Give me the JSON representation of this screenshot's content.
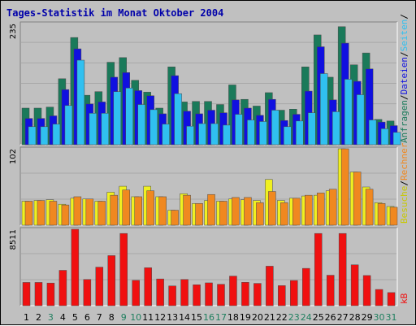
{
  "chart_data": {
    "type": "bar",
    "title": "Tages-Statistik im Monat Oktober 2004",
    "categories": [
      "1",
      "2",
      "3",
      "4",
      "5",
      "6",
      "7",
      "8",
      "9",
      "10",
      "11",
      "12",
      "13",
      "14",
      "15",
      "16",
      "17",
      "18",
      "19",
      "20",
      "21",
      "22",
      "23",
      "24",
      "25",
      "26",
      "27",
      "28",
      "29",
      "30",
      "31"
    ],
    "category_colors": [
      "#000000",
      "#000000",
      "#1f7f5f",
      "#000000",
      "#000000",
      "#000000",
      "#000000",
      "#000000",
      "#1f7f5f",
      "#1f7f5f",
      "#000000",
      "#000000",
      "#000000",
      "#000000",
      "#000000",
      "#1f7f5f",
      "#1f7f5f",
      "#000000",
      "#000000",
      "#000000",
      "#000000",
      "#000000",
      "#1f7f5f",
      "#1f7f5f",
      "#000000",
      "#000000",
      "#000000",
      "#000000",
      "#000000",
      "#1f7f5f",
      "#1f7f5f"
    ],
    "panels": [
      {
        "id": "top",
        "ymax_label": "235",
        "ymax": 235,
        "series": [
          {
            "name": "Anfragen",
            "color": "#1a7a5a",
            "values": [
              71,
              71,
              73,
              128,
              208,
              96,
              103,
              160,
              169,
              125,
              102,
              71,
              151,
              83,
              84,
              84,
              78,
              116,
              88,
              75,
              101,
              67,
              69,
              151,
              213,
              131,
              229,
              155,
              178,
              49,
              46
            ]
          },
          {
            "name": "Dateien",
            "color": "#1010e0",
            "values": [
              51,
              51,
              56,
              107,
              186,
              79,
              83,
              131,
              140,
              105,
              95,
              60,
              134,
              65,
              60,
              67,
              62,
              87,
              71,
              57,
              88,
              47,
              59,
              104,
              190,
              87,
              197,
              123,
              147,
              44,
              37
            ]
          },
          {
            "name": "Seiten",
            "color": "#30c0f0",
            "values": [
              35,
              35,
              40,
              76,
              164,
              61,
              61,
              103,
              110,
              78,
              68,
              40,
              99,
              36,
              41,
              41,
              38,
              59,
              48,
              45,
              67,
              35,
              46,
              62,
              138,
              64,
              127,
              97,
              48,
              31,
              24
            ]
          }
        ],
        "legend": [
          "Anfragen",
          "/",
          "Dateien",
          "/",
          "Seiten",
          "/"
        ]
      },
      {
        "id": "middle",
        "ymax_label": "102",
        "ymax": 102,
        "series": [
          {
            "name": "Besuche",
            "color": "#f0f020",
            "values": [
              32,
              33,
              34,
              28,
              36,
              35,
              32,
              44,
              52,
              38,
              52,
              38,
              20,
              42,
              29,
              33,
              32,
              35,
              34,
              33,
              61,
              33,
              36,
              39,
              40,
              46,
              102,
              71,
              51,
              30,
              25
            ]
          },
          {
            "name": "Rechner",
            "color": "#f08820",
            "values": [
              32,
              33,
              32,
              27,
              38,
              35,
              32,
              40,
              47,
              38,
              46,
              38,
              20,
              40,
              29,
              41,
              32,
              37,
              37,
              30,
              45,
              30,
              36,
              40,
              43,
              48,
              102,
              71,
              48,
              29,
              24
            ]
          }
        ],
        "legend": [
          "Besuche",
          "/",
          "Rechner"
        ]
      },
      {
        "id": "bottom",
        "ymax_label": "8511",
        "ymax": 8511,
        "series": [
          {
            "name": "kB",
            "color": "#f01010",
            "values": [
              2587,
              2587,
              2521,
              3938,
              8511,
              2922,
              4293,
              5577,
              8044,
              2819,
              4226,
              2978,
              2197,
              2919,
              2331,
              2540,
              2383,
              3296,
              2600,
              2482,
              4399,
              2234,
              2805,
              4155,
              8044,
              3392,
              8044,
              4551,
              3360,
              1807,
              1460
            ]
          }
        ],
        "legend": [
          "kB"
        ]
      }
    ]
  }
}
